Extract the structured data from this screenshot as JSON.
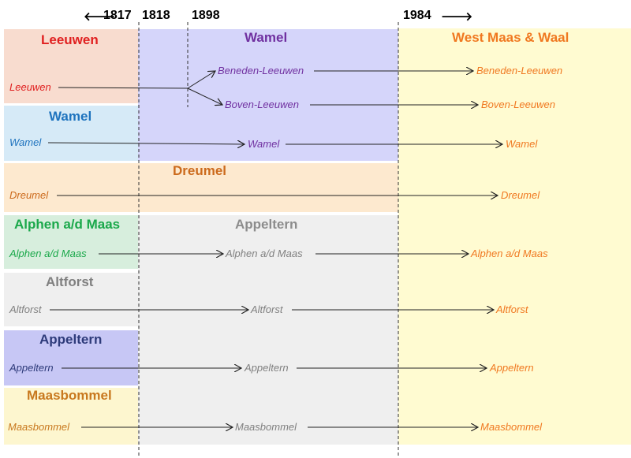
{
  "timeline": {
    "start_arrow": "🡐",
    "years": [
      "1817",
      "1818",
      "1898",
      "1984"
    ],
    "end_arrow": "🡒"
  },
  "municipalities": {
    "leeuwen": {
      "title": "Leeuwen",
      "color": "#e02020"
    },
    "wamel_old": {
      "title": "Wamel",
      "color": "#1e73be"
    },
    "dreumel": {
      "title": "Dreumel",
      "color": "#cc6a1c"
    },
    "alphen": {
      "title": "Alphen a/d Maas",
      "color": "#1aa84a"
    },
    "altforst": {
      "title": "Altforst",
      "color": "#808080"
    },
    "appeltern_old": {
      "title": "Appeltern",
      "color": "#2e3b7a"
    },
    "maasbommel": {
      "title": "Maasbommel",
      "color": "#c8781e"
    },
    "wamel_1818": {
      "title": "Wamel",
      "color": "#7030a0"
    },
    "appeltern_1818": {
      "title": "Appeltern",
      "color": "#8c8c8c"
    },
    "west_maas_waal": {
      "title": "West Maas & Waal",
      "color": "#f07820"
    }
  },
  "places": {
    "leeuwen_1817": "Leeuwen",
    "beneden_1898": "Beneden-Leeuwen",
    "boven_1898": "Boven-Leeuwen",
    "beneden_1984": "Beneden-Leeuwen",
    "boven_1984": "Boven-Leeuwen",
    "wamel_1817": "Wamel",
    "wamel_1818": "Wamel",
    "wamel_1984": "Wamel",
    "dreumel_1817": "Dreumel",
    "dreumel_1984": "Dreumel",
    "alphen_1817": "Alphen a/d Maas",
    "alphen_1818": "Alphen a/d Maas",
    "alphen_1984": "Alphen a/d Maas",
    "altforst_1817": "Altforst",
    "altforst_1818": "Altforst",
    "altforst_1984": "Altforst",
    "appeltern_1817": "Appeltern",
    "appeltern_1818": "Appeltern",
    "appeltern_1984": "Appeltern",
    "maasbommel_1817": "Maasbommel",
    "maasbommel_1818": "Maasbommel",
    "maasbommel_1984": "Maasbommel"
  },
  "colors": {
    "leeuwen_bg": "#f8dccf",
    "wamel_old_bg": "#d6eaf7",
    "dreumel_bg": "#fde9cf",
    "alphen_bg": "#d7eedd",
    "altforst_bg": "#efefef",
    "appeltern_old_bg": "#c7c7f5",
    "maasbommel_bg": "#fdf6cf",
    "wamel_1818_bg": "#d5d5fa",
    "appeltern_1818_bg": "#efefef",
    "west_maas_waal_bg": "#fffbd1"
  }
}
